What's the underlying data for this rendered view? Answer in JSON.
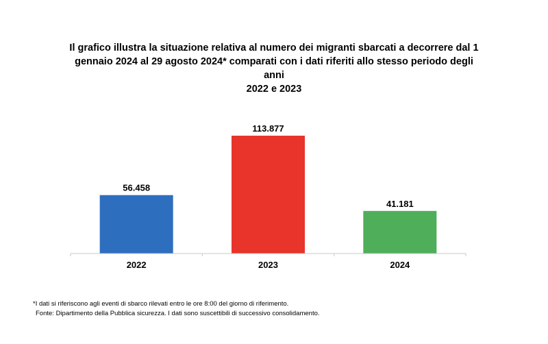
{
  "chart_data": {
    "type": "bar",
    "title": "Il grafico illustra la situazione relativa al numero dei migranti sbarcati a decorrere dal 1 gennaio 2024 al 29 agosto 2024* comparati con i dati riferiti allo stesso periodo degli anni 2022 e 2023",
    "title_lines": [
      "Il grafico illustra la situazione relativa al numero dei migranti sbarcati a decorrere dal 1",
      "gennaio 2024 al 29 agosto 2024* comparati con i dati riferiti allo stesso periodo degli anni",
      "2022 e 2023"
    ],
    "categories": [
      "2022",
      "2023",
      "2024"
    ],
    "values": [
      56458,
      113877,
      41181
    ],
    "value_labels": [
      "56.458",
      "113.877",
      "41.181"
    ],
    "colors": [
      "#2e6ebf",
      "#e8342a",
      "#4fae5a"
    ],
    "xlabel": "",
    "ylabel": "",
    "ylim": [
      0,
      113877
    ],
    "grid": false,
    "legend": "none"
  },
  "footnotes": {
    "note": "*I dati si riferiscono agli eventi di sbarco rilevati entro le ore 8:00 del giorno di riferimento.",
    "source": "Fonte: Dipartimento della Pubblica sicurezza. I dati sono suscettibili di successivo consolidamento."
  }
}
